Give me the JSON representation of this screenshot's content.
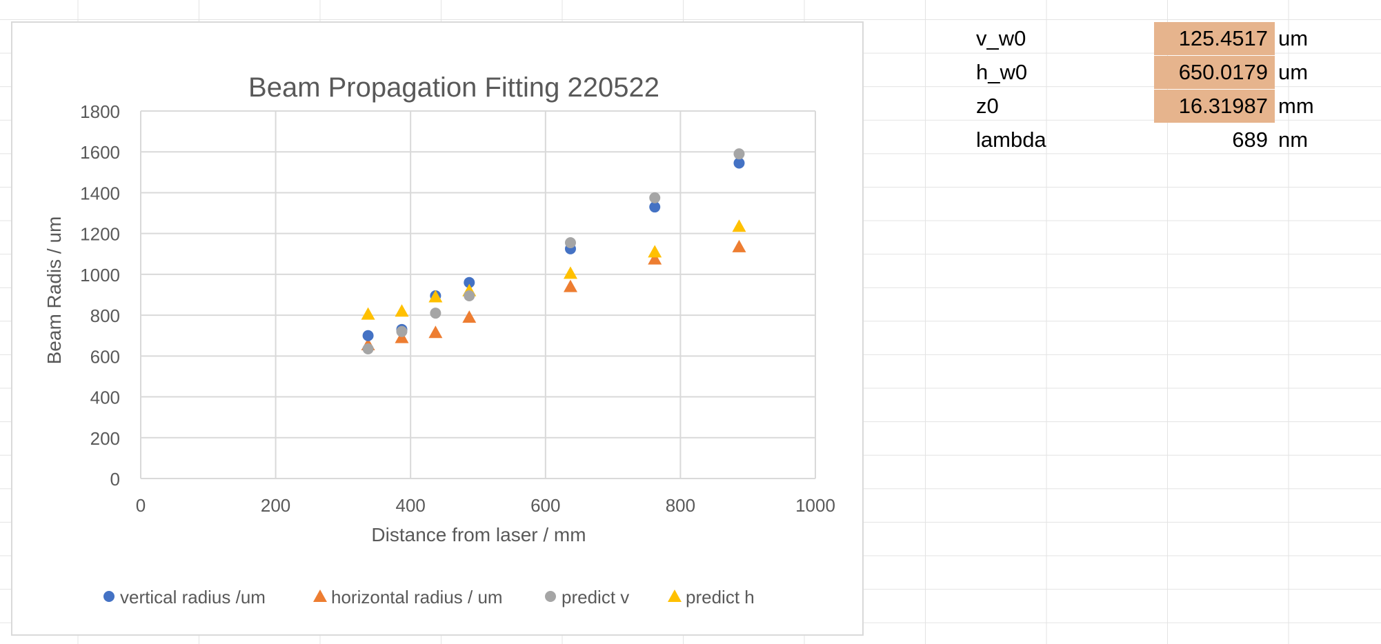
{
  "params": [
    {
      "label": "v_w0",
      "value": "125.4517",
      "unit": "um",
      "highlight": true
    },
    {
      "label": "h_w0",
      "value": "650.0179",
      "unit": "um",
      "highlight": true
    },
    {
      "label": "z0",
      "value": "16.31987",
      "unit": "mm",
      "highlight": true
    },
    {
      "label": "lambda",
      "value": "689",
      "unit": "nm",
      "highlight": false
    }
  ],
  "colors": {
    "vertical_radius": "#4472c4",
    "horizontal_radius": "#ed7d31",
    "predict_v": "#a5a5a5",
    "predict_h": "#ffc000",
    "gridline": "#d9d9d9",
    "text": "#595959",
    "highlight_cell": "#e6b48d"
  },
  "chart_data": {
    "type": "scatter",
    "title": "Beam Propagation Fitting 220522",
    "xlabel": "Distance from laser / mm",
    "ylabel": "Beam Radis / um",
    "xlim": [
      0,
      1000
    ],
    "ylim": [
      0,
      1800
    ],
    "xticks": [
      0,
      200,
      400,
      600,
      800,
      1000
    ],
    "yticks": [
      0,
      200,
      400,
      600,
      800,
      1000,
      1200,
      1400,
      1600,
      1800
    ],
    "grid": true,
    "legend": "bottom",
    "series": [
      {
        "name": "vertical radius /um",
        "marker": "circle",
        "color": "#4472c4",
        "x": [
          337,
          387,
          437,
          487,
          637,
          762,
          887
        ],
        "y": [
          700,
          730,
          895,
          960,
          1125,
          1330,
          1545
        ]
      },
      {
        "name": "horizontal radius / um",
        "marker": "triangle",
        "color": "#ed7d31",
        "x": [
          337,
          387,
          437,
          487,
          637,
          762,
          887
        ],
        "y": [
          655,
          690,
          715,
          790,
          940,
          1075,
          1135
        ]
      },
      {
        "name": "predict v",
        "marker": "circle",
        "color": "#a5a5a5",
        "x": [
          337,
          387,
          437,
          487,
          637,
          762,
          887
        ],
        "y": [
          635,
          720,
          810,
          895,
          1155,
          1375,
          1590
        ]
      },
      {
        "name": "predict h",
        "marker": "triangle",
        "color": "#ffc000",
        "x": [
          337,
          387,
          437,
          487,
          637,
          762,
          887
        ],
        "y": [
          805,
          820,
          890,
          920,
          1005,
          1110,
          1235
        ]
      }
    ]
  }
}
